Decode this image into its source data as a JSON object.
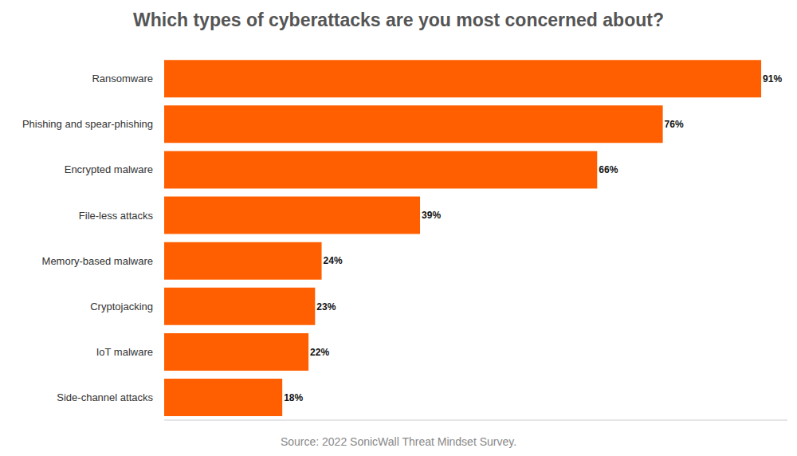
{
  "chart_data": {
    "type": "bar",
    "orientation": "horizontal",
    "title": "Which types of cyberattacks are you most concerned about?",
    "annotation": "Source: 2022 SonicWall Threat Mindset Survey.",
    "categories": [
      "Ransomware",
      "Phishing and spear-phishing",
      "Encrypted malware",
      "File-less attacks",
      "Memory-based malware",
      "Cryptojacking",
      "IoT malware",
      "Side-channel attacks"
    ],
    "values": [
      91,
      76,
      66,
      39,
      24,
      23,
      22,
      18
    ],
    "value_labels": [
      "91%",
      "76%",
      "66%",
      "39%",
      "24%",
      "23%",
      "22%",
      "18%"
    ],
    "color": "#ff5f00",
    "xlim": [
      0,
      95
    ],
    "xticks": [],
    "grid": false,
    "data_labels": true,
    "tick_labels": "y"
  }
}
